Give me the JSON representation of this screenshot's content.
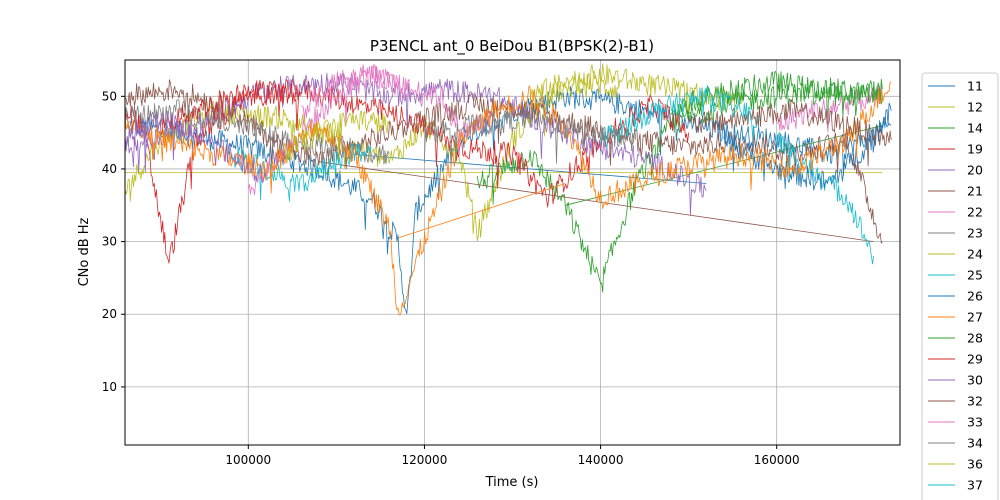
{
  "chart_data": {
    "type": "line",
    "title": "P3ENCL ant_0 BeiDou B1(BPSK(2)-B1)",
    "xlabel": "Time (s)",
    "ylabel": "CNo dB Hz",
    "xlim": [
      86000,
      174000
    ],
    "ylim": [
      2,
      55
    ],
    "xticks": [
      100000,
      120000,
      140000,
      160000
    ],
    "yticks": [
      10,
      20,
      30,
      40,
      50
    ],
    "grid": true,
    "legend_position": "right-outside",
    "series": [
      {
        "name": "11",
        "color": "#1f77b4",
        "segments": [
          {
            "x": [
              86500,
              92000,
              100000,
              108000,
              114000,
              117000,
              118000,
              119000,
              124000,
              130000,
              136000,
              142000,
              148000,
              154000,
              160000,
              166000,
              170000,
              173000
            ],
            "y": [
              46,
              45,
              43,
              40,
              36,
              30,
              19,
              34,
              44,
              48,
              50,
              49,
              47,
              45,
              44,
              42,
              44,
              46
            ]
          },
          {
            "x": [
              112000,
              152000
            ],
            "y": [
              42,
              38
            ]
          }
        ]
      },
      {
        "name": "12",
        "color": "#bcbd22",
        "segments": [
          {
            "x": [
              86000,
              90000,
              96000,
              104000,
              110000,
              116000,
              120000,
              124000,
              126000,
              130000,
              134000,
              138000,
              142000
            ],
            "y": [
              37,
              44,
              48,
              47,
              44,
              41,
              46,
              42,
              31,
              44,
              50,
              52,
              51
            ]
          },
          {
            "x": [
              86000,
              172000
            ],
            "y": [
              39.5,
              39.5
            ]
          }
        ]
      },
      {
        "name": "14",
        "color": "#2ca02c",
        "segments": [
          {
            "x": [
              126000,
              132000,
              136000,
              140000,
              144000,
              148000,
              154000,
              160000,
              166000,
              172000
            ],
            "y": [
              38,
              42,
              35,
              24,
              38,
              46,
              49,
              50,
              51,
              50
            ]
          },
          {
            "x": [
              136000,
              172000
            ],
            "y": [
              35,
              46
            ]
          }
        ]
      },
      {
        "name": "19",
        "color": "#d62728",
        "segments": [
          {
            "x": [
              86000,
              88000,
              91000,
              94000,
              100000,
              106000,
              112000,
              118000,
              124000,
              130000,
              134000,
              140000,
              146000,
              150000
            ],
            "y": [
              48,
              46,
              27,
              44,
              50,
              51,
              49,
              47,
              43,
              42,
              36,
              44,
              49,
              45
            ]
          }
        ]
      },
      {
        "name": "20",
        "color": "#9467bd",
        "segments": [
          {
            "x": [
              86000,
              94000,
              102000,
              110000,
              116000,
              122000,
              128000,
              134000,
              140000,
              146000,
              152000
            ],
            "y": [
              43,
              46,
              51,
              52,
              50,
              51,
              50,
              46,
              43,
              41,
              37
            ]
          }
        ]
      },
      {
        "name": "21",
        "color": "#8c564b",
        "segments": [
          {
            "x": [
              86000,
              92000,
              98000,
              104000,
              108000,
              114000,
              120000,
              126000,
              132000,
              138000,
              144000,
              150000,
              156000,
              162000,
              168000,
              172000
            ],
            "y": [
              50,
              51,
              48,
              43,
              41,
              44,
              47,
              49,
              48,
              46,
              44,
              43,
              44,
              42,
              44,
              30
            ]
          },
          {
            "x": [
              108000,
              171000
            ],
            "y": [
              41,
              30
            ]
          }
        ]
      },
      {
        "name": "22",
        "color": "#e377c2",
        "segments": [
          {
            "x": [
              100000,
              106000,
              110000,
              114000,
              118000,
              122000,
              124000,
              128000
            ],
            "y": [
              37,
              45,
              50,
              53,
              51,
              50,
              45,
              47
            ]
          },
          {
            "x": [
              160000,
              164000,
              168000,
              172000
            ],
            "y": [
              46,
              48,
              49,
              50
            ]
          }
        ]
      },
      {
        "name": "23",
        "color": "#7f7f7f",
        "segments": [
          {
            "x": [
              86000,
              92000,
              98000,
              104000,
              110000,
              116000
            ],
            "y": [
              47,
              48,
              46,
              44,
              43,
              42
            ]
          }
        ]
      },
      {
        "name": "24",
        "color": "#bcbd22",
        "segments": [
          {
            "x": [
              132000,
              136000,
              140000,
              144000,
              148000,
              152000,
              156000
            ],
            "y": [
              50,
              52,
              53,
              52,
              51,
              50,
              49
            ]
          }
        ]
      },
      {
        "name": "25",
        "color": "#17becf",
        "segments": [
          {
            "x": [
              98000,
              102000,
              106000,
              110000,
              114000
            ],
            "y": [
              42,
              40,
              38,
              41,
              43
            ]
          },
          {
            "x": [
              160000,
              164000,
              168000,
              171000
            ],
            "y": [
              44,
              40,
              36,
              28
            ]
          }
        ]
      },
      {
        "name": "26",
        "color": "#1f77b4",
        "segments": [
          {
            "x": [
              154000,
              160000,
              166000,
              170000,
              173000
            ],
            "y": [
              44,
              40,
              38,
              43,
              48
            ]
          }
        ]
      },
      {
        "name": "27",
        "color": "#ff7f0e",
        "segments": [
          {
            "x": [
              86000,
              90000,
              96000,
              102000,
              108000,
              112000,
              116000,
              117000,
              124000,
              128000,
              132000,
              136000,
              140000,
              148000,
              156000,
              162000,
              168000,
              173000
            ],
            "y": [
              47,
              44,
              42,
              40,
              46,
              42,
              32,
              20,
              44,
              48,
              50,
              46,
              36,
              40,
              42,
              40,
              44,
              52
            ]
          },
          {
            "x": [
              117000,
              136000
            ],
            "y": [
              30.5,
              38
            ]
          }
        ]
      },
      {
        "name": "28",
        "color": "#2ca02c",
        "segments": [
          {
            "x": [
              148000,
              152000,
              156000,
              160000,
              164000,
              168000,
              172000
            ],
            "y": [
              48,
              50,
              51,
              52,
              51,
              50,
              51
            ]
          }
        ]
      },
      {
        "name": "29",
        "color": "#d62728",
        "segments": [
          {
            "x": [
              90000,
              96000,
              100000,
              106000
            ],
            "y": [
              46,
              49,
              51,
              50
            ]
          }
        ]
      },
      {
        "name": "30",
        "color": "#9467bd",
        "segments": [
          {
            "x": [
              86000,
              90000,
              94000,
              98000,
              102000
            ],
            "y": [
              44,
              47,
              45,
              42,
              39
            ]
          }
        ]
      },
      {
        "name": "32",
        "color": "#8c564b",
        "segments": [
          {
            "x": [
              150000,
              156000,
              162000,
              168000,
              173000
            ],
            "y": [
              46,
              47,
              48,
              46,
              44
            ]
          }
        ]
      },
      {
        "name": "33",
        "color": "#e377c2",
        "segments": [
          {
            "x": [
              106000,
              110000,
              114000,
              118000
            ],
            "y": [
              48,
              52,
              53,
              51
            ]
          }
        ]
      },
      {
        "name": "34",
        "color": "#7f7f7f",
        "segments": [
          {
            "x": [
              120000,
              126000,
              132000,
              138000,
              144000
            ],
            "y": [
              45,
              46,
              47,
              45,
              44
            ]
          }
        ]
      },
      {
        "name": "36",
        "color": "#bcbd22",
        "segments": [
          {
            "x": [
              104000,
              108000,
              112000,
              116000
            ],
            "y": [
              42,
              45,
              47,
              46
            ]
          }
        ]
      },
      {
        "name": "37",
        "color": "#17becf",
        "segments": [
          {
            "x": [
              140000,
              146000,
              152000,
              158000
            ],
            "y": [
              44,
              48,
              50,
              47
            ]
          }
        ]
      }
    ]
  }
}
